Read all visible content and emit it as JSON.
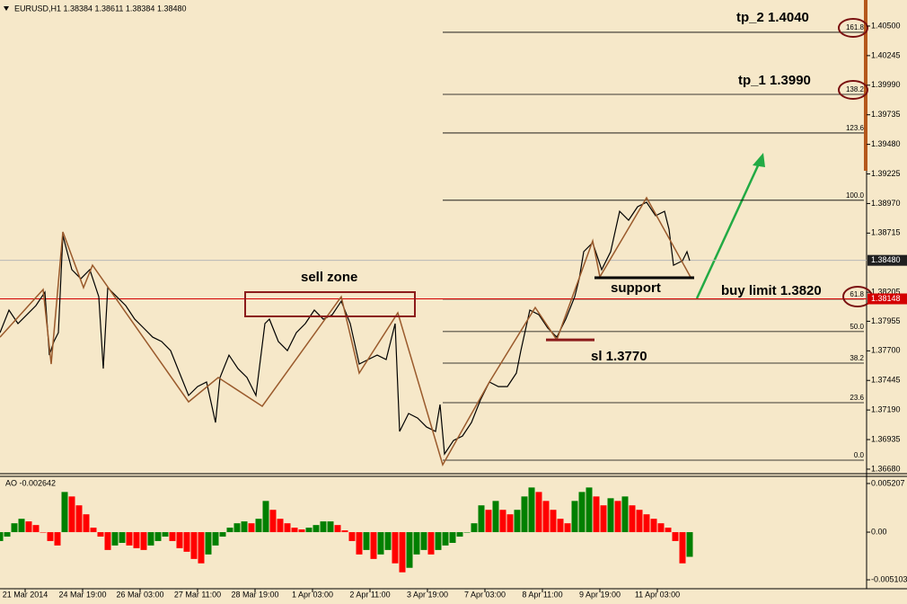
{
  "chart_data": [
    {
      "type": "line",
      "title": "EURUSD,H1  1.38384 1.38611 1.38384 1.38480",
      "color": "#000000",
      "x": [
        0,
        5,
        10,
        15,
        20,
        25,
        27.5,
        30,
        32.5,
        35,
        40,
        45,
        50,
        55,
        57.5,
        60,
        65,
        70,
        75,
        80,
        85,
        90,
        95,
        100,
        105,
        110,
        115,
        120,
        122.5,
        127.5,
        132.5,
        137.5,
        142.5,
        147.5,
        150,
        155,
        160,
        165,
        170,
        175,
        180,
        185,
        190,
        195,
        200,
        205,
        210,
        215,
        220,
        222.5,
        227.5,
        232.5,
        237.5,
        242.5,
        245,
        247.5,
        252.5,
        257.5,
        262.5,
        267.5,
        272.5,
        277.5,
        282.5,
        287.5,
        290,
        295,
        300,
        305,
        310,
        315,
        320,
        322.5,
        325,
        330,
        335,
        340,
        345,
        350,
        355,
        360,
        365,
        370,
        372.5,
        375,
        380,
        382.5,
        384
      ],
      "values": [
        1.37857,
        1.38051,
        1.37935,
        1.38012,
        1.3809,
        1.38206,
        1.37663,
        1.3778,
        1.37857,
        1.38694,
        1.384,
        1.38322,
        1.384,
        1.38167,
        1.37547,
        1.38245,
        1.38167,
        1.3809,
        1.37973,
        1.37896,
        1.37818,
        1.3778,
        1.37702,
        1.37508,
        1.37315,
        1.37392,
        1.37431,
        1.37082,
        1.3747,
        1.37663,
        1.37547,
        1.3747,
        1.37315,
        1.37935,
        1.37973,
        1.3778,
        1.37702,
        1.37857,
        1.37935,
        1.38051,
        1.37973,
        1.38012,
        1.38128,
        1.37935,
        1.37586,
        1.37625,
        1.37663,
        1.37625,
        1.37935,
        1.37005,
        1.3716,
        1.37121,
        1.37043,
        1.37005,
        1.37237,
        1.36811,
        1.36927,
        1.36966,
        1.37082,
        1.37276,
        1.37431,
        1.37392,
        1.37392,
        1.37508,
        1.37702,
        1.38051,
        1.38012,
        1.37896,
        1.37818,
        1.37973,
        1.38167,
        1.38322,
        1.38555,
        1.38632,
        1.384,
        1.38555,
        1.38903,
        1.38826,
        1.38942,
        1.38981,
        1.38865,
        1.38903,
        1.38748,
        1.38438,
        1.38477,
        1.38555,
        1.38477
      ],
      "zigzag": {
        "color": "#9a5a2c",
        "x": [
          0,
          24,
          28.5,
          35,
          46.5,
          51.5,
          105,
          121.5,
          146,
          190,
          200,
          221.5,
          246.5,
          272.5,
          298,
          310,
          330,
          334,
          360,
          385
        ],
        "values": [
          1.37818,
          1.38229,
          1.37586,
          1.38725,
          1.38245,
          1.38438,
          1.3726,
          1.3747,
          1.37222,
          1.38167,
          1.37508,
          1.38028,
          1.36718,
          1.37431,
          1.38074,
          1.37795,
          1.38648,
          1.38338,
          1.3902,
          1.38322
        ]
      },
      "fib_start_x": 246.5,
      "fib_levels": [
        {
          "value": 1.40446,
          "label": "161.8"
        },
        {
          "value": 1.39911,
          "label": "138.2"
        },
        {
          "value": 1.39578,
          "label": "123.6"
        },
        {
          "value": 1.38998,
          "label": "100.0"
        },
        {
          "value": 1.38145,
          "label": "61.8"
        },
        {
          "value": 1.37866,
          "label": "50.0"
        },
        {
          "value": 1.37594,
          "label": "38.2"
        },
        {
          "value": 1.37253,
          "label": "23.6"
        },
        {
          "value": 1.36757,
          "label": "0.0"
        }
      ],
      "price_lines": [
        {
          "value": 1.3848,
          "label": "1.38480",
          "color": "#b8b8b8",
          "box": "#202020"
        },
        {
          "value": 1.38148,
          "label": "1.38148",
          "color": "#d40000",
          "box": "#d40000"
        }
      ],
      "sell_zone": {
        "x": [
          136.5,
          231
        ],
        "y": [
          1.37997,
          1.38206
        ],
        "color": "#8b1a1a"
      },
      "support": {
        "x": [
          331,
          386.5
        ],
        "y": 1.3833,
        "color": "#000000"
      },
      "stop_loss": {
        "x": [
          304,
          331
        ],
        "y": 1.37795,
        "color": "#8b1a1a"
      },
      "annotations": [
        "tp_2 1.4040",
        "tp_1 1.3990",
        "sell zone",
        "support",
        "buy limit 1.3820",
        "sl 1.3770"
      ],
      "xlim": [
        0,
        482.5
      ],
      "ylim": [
        1.36641,
        1.40709
      ],
      "xticks": [
        {
          "value": 14,
          "label": "21 Mar 2014"
        },
        {
          "value": 46,
          "label": "24 Mar 19:00"
        },
        {
          "value": 78,
          "label": "26 Mar 03:00"
        },
        {
          "value": 110,
          "label": "27 Mar 11:00"
        },
        {
          "value": 142,
          "label": "28 Mar 19:00"
        },
        {
          "value": 174,
          "label": "1 Apr 03:00"
        },
        {
          "value": 206,
          "label": "2 Apr 11:00"
        },
        {
          "value": 238,
          "label": "3 Apr 19:00"
        },
        {
          "value": 270,
          "label": "7 Apr 03:00"
        },
        {
          "value": 302,
          "label": "8 Apr 11:00"
        },
        {
          "value": 334,
          "label": "9 Apr 19:00"
        },
        {
          "value": 366,
          "label": "11 Apr 03:00"
        }
      ],
      "yticks": [
        {
          "value": 1.405,
          "label": "1.40500"
        },
        1.40245,
        {
          "value": 1.3999,
          "label": "1.39990"
        },
        1.39735,
        {
          "value": 1.3948,
          "label": "1.39480"
        },
        1.39225,
        {
          "value": 1.3897,
          "label": "1.38970"
        },
        1.38715,
        1.38205,
        1.37955,
        {
          "value": 1.377,
          "label": "1.37700"
        },
        1.37445,
        {
          "value": 1.3719,
          "label": "1.37190"
        },
        1.36935,
        {
          "value": 1.3668,
          "label": "1.36680"
        }
      ]
    },
    {
      "type": "bar",
      "title": "AO -0.002642",
      "up_color": "#008000",
      "down_color": "#ff0000",
      "x": [
        0,
        4,
        8,
        12,
        16,
        20,
        24,
        28,
        32,
        36,
        40,
        44,
        48,
        52,
        56,
        60,
        64,
        68,
        72,
        76,
        80,
        84,
        88,
        92,
        96,
        100,
        104,
        108,
        112,
        116,
        120,
        124,
        128,
        132,
        136,
        140,
        144,
        148,
        152,
        156,
        160,
        164,
        168,
        172,
        176,
        180,
        184,
        188,
        192,
        196,
        200,
        204,
        208,
        212,
        216,
        220,
        224,
        228,
        232,
        236,
        240,
        244,
        248,
        252,
        256,
        260,
        264,
        268,
        272,
        276,
        280,
        284,
        288,
        292,
        296,
        300,
        304,
        308,
        312,
        316,
        320,
        324,
        328,
        332,
        336,
        340,
        344,
        348,
        352,
        356,
        360,
        364,
        368,
        372,
        376,
        380,
        384
      ],
      "values": [
        -0.00095,
        -0.00048,
        0.00095,
        0.00143,
        0.00115,
        0.00076,
        0,
        -0.00095,
        -0.00143,
        0.0043,
        0.00382,
        0.00287,
        0.00191,
        0.00048,
        -0.00048,
        -0.00191,
        -0.00143,
        -0.00115,
        -0.00143,
        -0.00172,
        -0.00191,
        -0.00143,
        -0.00095,
        -0.00048,
        -0.00095,
        -0.00172,
        -0.0021,
        -0.00287,
        -0.00334,
        -0.00239,
        -0.00143,
        -0.00048,
        0.00048,
        0.00095,
        0.00115,
        0.00095,
        0.00143,
        0.00334,
        0.00239,
        0.00143,
        0.00095,
        0.00048,
        0.00029,
        0.00048,
        0.00076,
        0.00115,
        0.00115,
        0.00076,
        0.00019,
        -0.00095,
        -0.00239,
        -0.00191,
        -0.00287,
        -0.00239,
        -0.00191,
        -0.00334,
        -0.0043,
        -0.00382,
        -0.00239,
        -0.00191,
        -0.00239,
        -0.00191,
        -0.00143,
        -0.00115,
        -0.00048,
        0,
        0.00095,
        0.00287,
        0.00239,
        0.00334,
        0.00239,
        0.00191,
        0.00239,
        0.00382,
        0.00478,
        0.0043,
        0.00334,
        0.00239,
        0.00143,
        0.00095,
        0.00334,
        0.0043,
        0.00478,
        0.00382,
        0.00287,
        0.00363,
        0.00334,
        0.00382,
        0.00287,
        0.00239,
        0.00191,
        0.00143,
        0.00095,
        0.00048,
        -0.00095,
        -0.00334,
        -0.002642
      ],
      "ylim": [
        -0.006058,
        0.005875
      ],
      "yticks": [
        0.005207,
        {
          "value": 0,
          "label": "0.00"
        },
        -0.005103
      ]
    }
  ]
}
